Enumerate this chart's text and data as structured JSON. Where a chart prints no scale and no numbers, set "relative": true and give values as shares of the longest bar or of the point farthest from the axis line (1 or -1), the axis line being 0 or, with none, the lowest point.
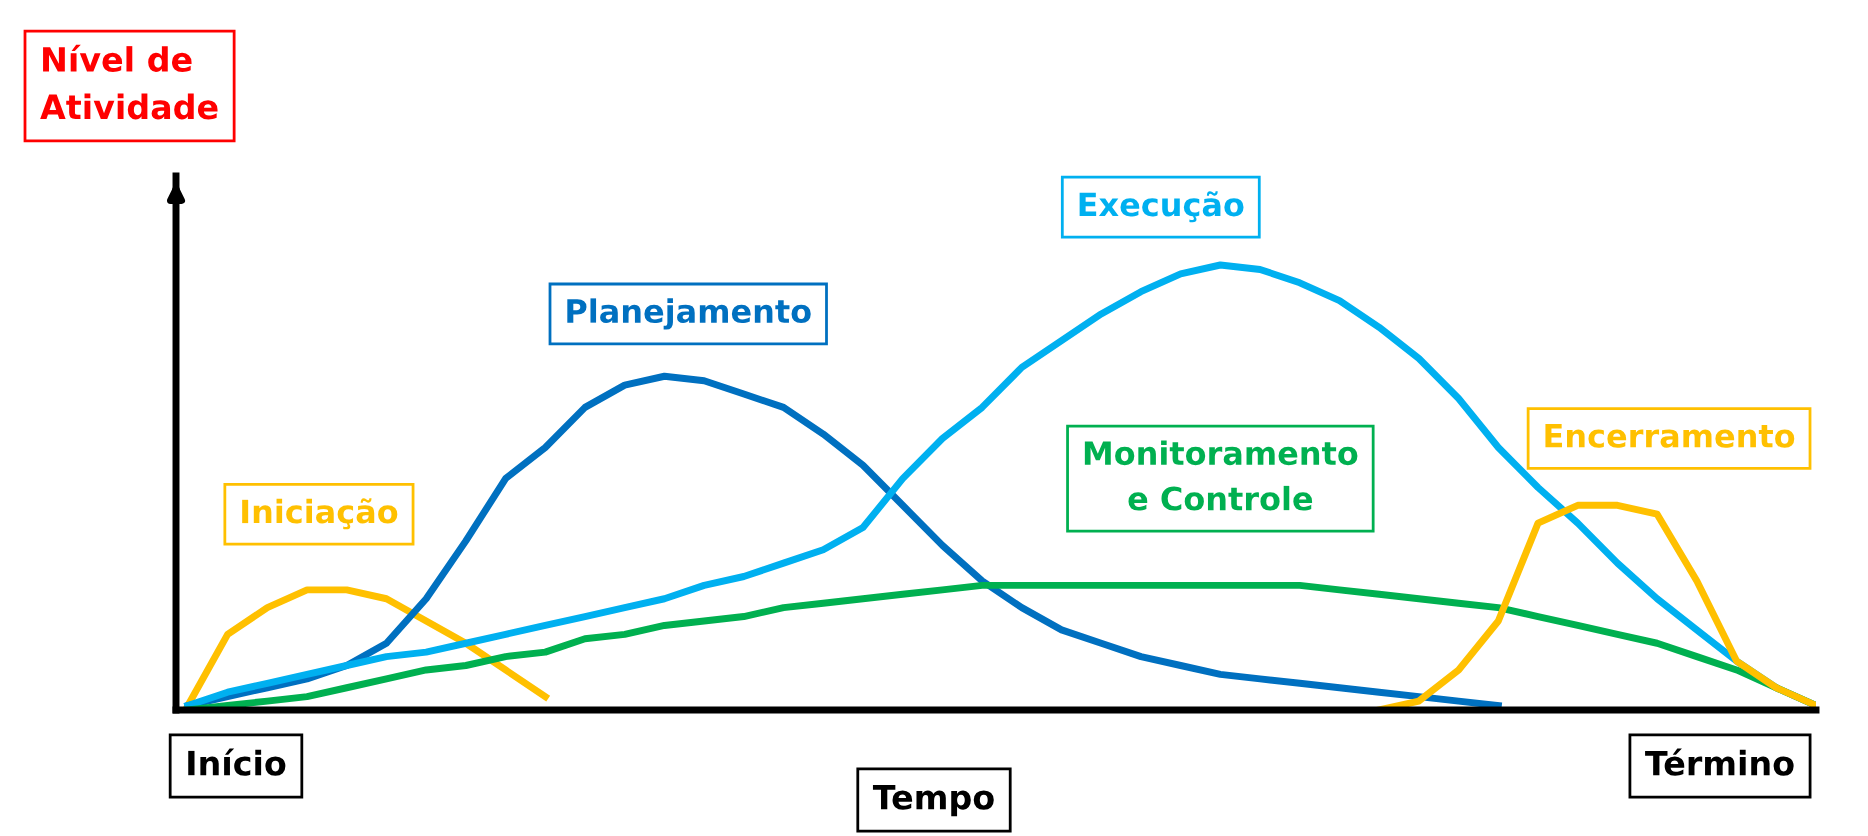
{
  "chart_data": {
    "type": "line",
    "relative": true,
    "ylabel": "Nível de\nAtividade",
    "xlabel": "Tempo",
    "annotations": [
      "Início",
      "Término"
    ],
    "legend": false,
    "marker": "none",
    "line_style": "solid",
    "categories": [
      null,
      null,
      null,
      null,
      null,
      null,
      null,
      null,
      null,
      null,
      null,
      null,
      null,
      null,
      null,
      null,
      null,
      null,
      null,
      null,
      null,
      null,
      null,
      null,
      null,
      null,
      null,
      null,
      null,
      null,
      null,
      null,
      null,
      null,
      null,
      null,
      null,
      null,
      null,
      null,
      null,
      null
    ],
    "series": [
      {
        "name": "Iniciação",
        "color": "#ffc000",
        "values": [
          0.01,
          0.17,
          0.23,
          0.27,
          0.27,
          0.25,
          0.2,
          0.15,
          0.09,
          0.03,
          null,
          null,
          null,
          null,
          null,
          null,
          null,
          null,
          null,
          null,
          null,
          null,
          null,
          null,
          null,
          null,
          null,
          null,
          null,
          null,
          null,
          null,
          null,
          null,
          null,
          null,
          null,
          null,
          null,
          null,
          null,
          null
        ]
      },
      {
        "name": "Planejamento",
        "color": "#0070c0",
        "values": [
          0.01,
          0.03,
          0.05,
          0.07,
          0.1,
          0.15,
          0.25,
          0.38,
          0.52,
          0.59,
          0.68,
          0.73,
          0.75,
          0.74,
          0.71,
          0.68,
          0.62,
          0.55,
          0.46,
          0.37,
          0.29,
          0.23,
          0.18,
          0.15,
          0.12,
          0.1,
          0.08,
          0.07,
          0.06,
          0.05,
          0.04,
          0.03,
          0.02,
          0.01,
          null,
          null,
          null,
          null,
          null,
          null,
          null,
          null
        ]
      },
      {
        "name": "Execução",
        "color": "#00b0f0",
        "values": [
          0.01,
          0.04,
          0.06,
          0.08,
          0.1,
          0.12,
          0.13,
          0.15,
          0.17,
          0.19,
          0.21,
          0.23,
          0.25,
          0.28,
          0.3,
          0.33,
          0.36,
          0.41,
          0.52,
          0.61,
          0.68,
          0.77,
          0.83,
          0.89,
          0.94,
          0.98,
          1.0,
          0.99,
          0.96,
          0.92,
          0.86,
          0.79,
          0.7,
          0.59,
          0.5,
          0.42,
          0.33,
          0.25,
          0.18,
          0.11,
          0.05,
          0.01
        ]
      },
      {
        "name": "Monitoramento\ne Controle",
        "color": "#00b050",
        "values": [
          0.0,
          0.01,
          0.02,
          0.03,
          0.05,
          0.07,
          0.09,
          0.1,
          0.12,
          0.13,
          0.16,
          0.17,
          0.19,
          0.2,
          0.21,
          0.23,
          0.24,
          0.25,
          0.26,
          0.27,
          0.28,
          0.28,
          0.28,
          0.28,
          0.28,
          0.28,
          0.28,
          0.28,
          0.28,
          0.27,
          0.26,
          0.25,
          0.24,
          0.23,
          0.21,
          0.19,
          0.17,
          0.15,
          0.12,
          0.09,
          0.05,
          0.01
        ]
      },
      {
        "name": "Encerramento",
        "color": "#ffc000",
        "values": [
          null,
          null,
          null,
          null,
          null,
          null,
          null,
          null,
          null,
          null,
          null,
          null,
          null,
          null,
          null,
          null,
          null,
          null,
          null,
          null,
          null,
          null,
          null,
          null,
          null,
          null,
          null,
          null,
          null,
          null,
          0.0,
          0.02,
          0.09,
          0.2,
          0.42,
          0.46,
          0.46,
          0.44,
          0.29,
          0.11,
          0.05,
          0.01
        ]
      }
    ]
  }
}
